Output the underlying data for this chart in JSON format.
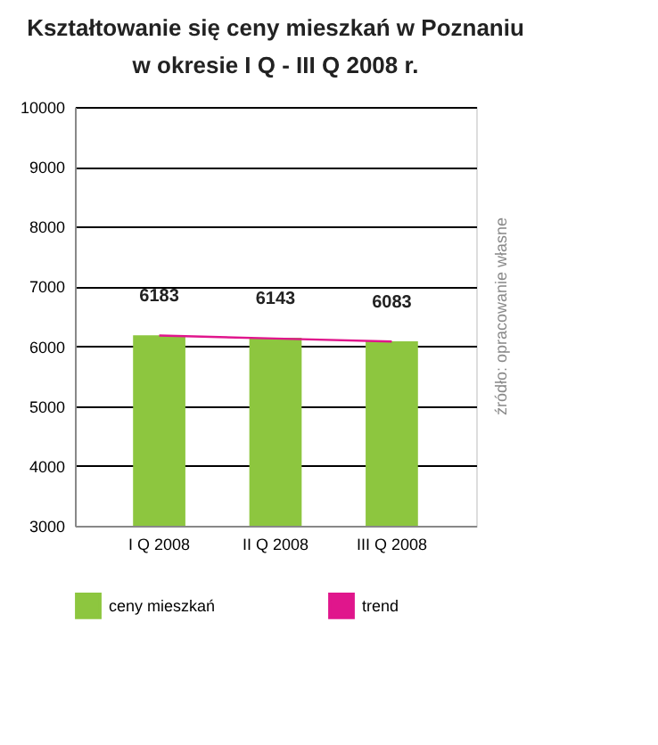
{
  "chart_data": {
    "type": "bar",
    "title": "Kształtowanie się ceny mieszkań w Poznaniu",
    "subtitle": "w okresie I Q - III Q 2008 r.",
    "categories": [
      "I Q 2008",
      "II Q 2008",
      "III Q 2008"
    ],
    "series": [
      {
        "name": "ceny mieszkań",
        "color": "#8dc63f",
        "values": [
          6183,
          6143,
          6083
        ],
        "value_labels": [
          "6183",
          "6143",
          "6083"
        ]
      },
      {
        "name": "trend",
        "type": "line",
        "color": "#e0168c",
        "values": [
          6180,
          6130,
          6080
        ]
      }
    ],
    "ylim": [
      3000,
      10000
    ],
    "yticks": [
      3000,
      4000,
      5000,
      6000,
      7000,
      8000,
      9000,
      10000
    ],
    "grid": "y",
    "legend": "bottom",
    "annotations": [
      "źródło: opracowanie własne"
    ]
  }
}
